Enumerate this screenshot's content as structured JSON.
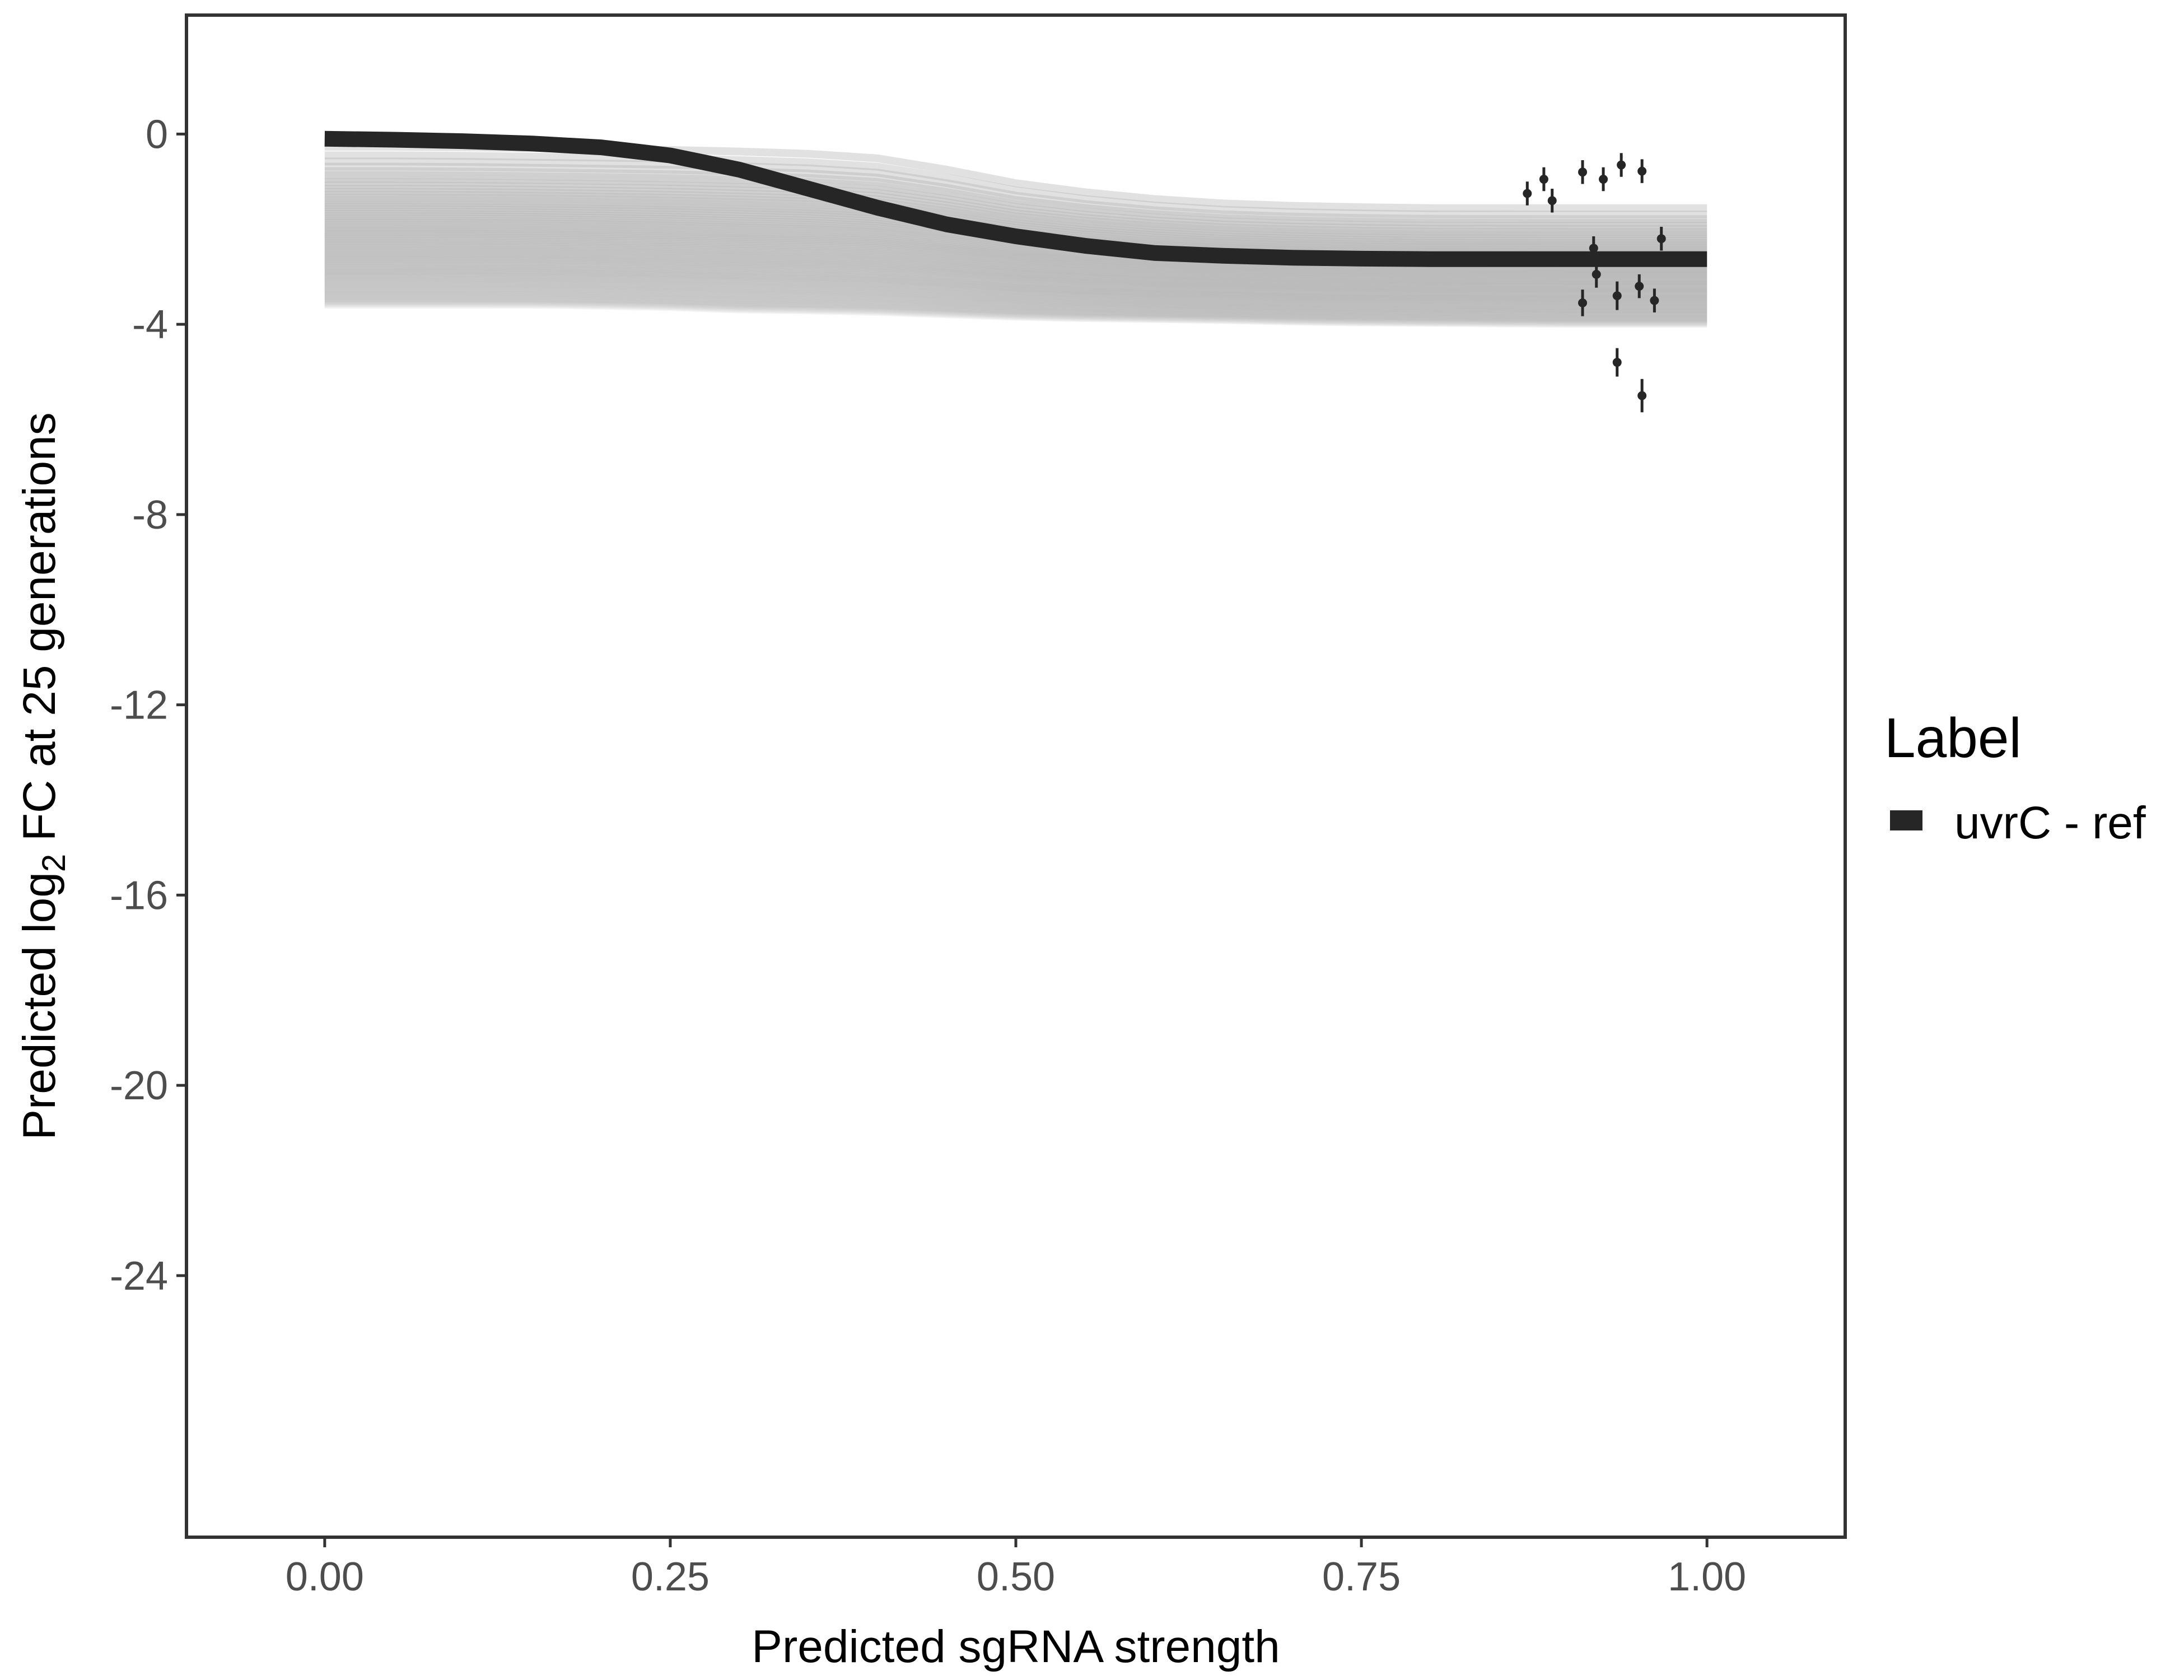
{
  "chart_data": {
    "type": "line",
    "title": "",
    "xlabel": "Predicted sgRNA strength",
    "ylabel_prefix": "Predicted  log",
    "ylabel_subscript": "2",
    "ylabel_suffix": " FC at 25 generations",
    "xlim": [
      -0.1,
      1.1
    ],
    "ylim": [
      -29.5,
      2.5
    ],
    "x_ticks": [
      0.0,
      0.25,
      0.5,
      0.75,
      1.0
    ],
    "x_tick_labels": [
      "0.00",
      "0.25",
      "0.50",
      "0.75",
      "1.00"
    ],
    "y_ticks": [
      0,
      -4,
      -8,
      -12,
      -16,
      -20,
      -24
    ],
    "y_tick_labels": [
      "0",
      "-4",
      "-8",
      "-12",
      "-16",
      "-20",
      "-24"
    ],
    "grid": false,
    "legend": {
      "title": "Label",
      "position": "right",
      "entries": [
        {
          "label": "uvrC - ref",
          "color": "#262626"
        }
      ]
    },
    "series": [
      {
        "name": "uvrC - ref",
        "kind": "mean-curve",
        "color": "#262626",
        "x": [
          0.0,
          0.05,
          0.1,
          0.15,
          0.2,
          0.25,
          0.3,
          0.35,
          0.4,
          0.45,
          0.5,
          0.55,
          0.6,
          0.65,
          0.7,
          0.75,
          0.8,
          0.85,
          0.9,
          0.95,
          1.0
        ],
        "y": [
          -0.1,
          -0.12,
          -0.15,
          -0.2,
          -0.28,
          -0.45,
          -0.75,
          -1.15,
          -1.55,
          -1.9,
          -2.15,
          -2.35,
          -2.5,
          -2.56,
          -2.6,
          -2.62,
          -2.63,
          -2.63,
          -2.63,
          -2.63,
          -2.63
        ]
      },
      {
        "kind": "posterior-draws",
        "color": "#b3b3b3",
        "upper": [
          -0.05,
          -0.05,
          -0.06,
          -0.08,
          -0.1,
          -0.12,
          -0.15,
          -0.2,
          -0.3,
          -0.55,
          -0.85,
          -1.05,
          -1.2,
          -1.3,
          -1.35,
          -1.38,
          -1.4,
          -1.4,
          -1.4,
          -1.4,
          -1.4
        ],
        "lower": [
          -3.6,
          -3.6,
          -3.6,
          -3.6,
          -3.62,
          -3.65,
          -3.7,
          -3.72,
          -3.75,
          -3.8,
          -3.85,
          -3.88,
          -3.9,
          -3.92,
          -3.95,
          -3.97,
          -3.98,
          -3.99,
          -4.0,
          -4.0,
          -4.0
        ]
      },
      {
        "kind": "observed",
        "color": "#262626",
        "points": [
          {
            "x": 0.87,
            "y": -1.25,
            "err": 0.25
          },
          {
            "x": 0.882,
            "y": -0.95,
            "err": 0.25
          },
          {
            "x": 0.888,
            "y": -1.4,
            "err": 0.25
          },
          {
            "x": 0.91,
            "y": -0.8,
            "err": 0.25
          },
          {
            "x": 0.91,
            "y": -3.55,
            "err": 0.28
          },
          {
            "x": 0.918,
            "y": -2.4,
            "err": 0.25
          },
          {
            "x": 0.92,
            "y": -2.95,
            "err": 0.28
          },
          {
            "x": 0.925,
            "y": -0.95,
            "err": 0.25
          },
          {
            "x": 0.935,
            "y": -3.4,
            "err": 0.3
          },
          {
            "x": 0.935,
            "y": -4.8,
            "err": 0.3
          },
          {
            "x": 0.938,
            "y": -0.65,
            "err": 0.25
          },
          {
            "x": 0.951,
            "y": -3.2,
            "err": 0.25
          },
          {
            "x": 0.953,
            "y": -0.78,
            "err": 0.25
          },
          {
            "x": 0.953,
            "y": -5.5,
            "err": 0.35
          },
          {
            "x": 0.962,
            "y": -3.5,
            "err": 0.25
          },
          {
            "x": 0.967,
            "y": -2.2,
            "err": 0.25
          }
        ]
      }
    ]
  }
}
